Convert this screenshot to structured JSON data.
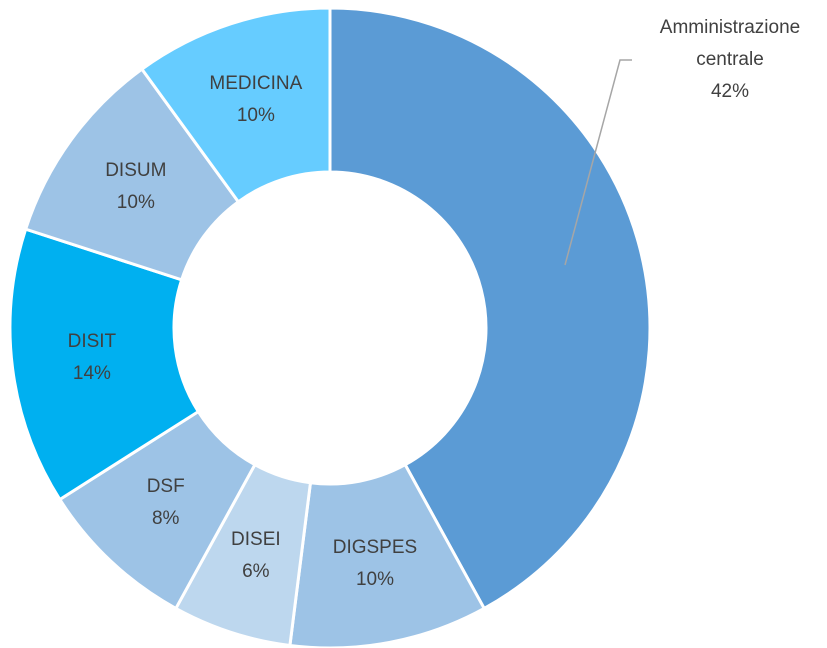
{
  "chart_data": {
    "type": "donut",
    "categories": [
      "Amministrazione centrale",
      "DIGSPES",
      "DISEI",
      "DSF",
      "DISIT",
      "DISUM",
      "MEDICINA"
    ],
    "values": [
      42,
      10,
      6,
      8,
      14,
      10,
      10
    ],
    "value_labels": [
      "42%",
      "10%",
      "6%",
      "8%",
      "14%",
      "10%",
      "10%"
    ],
    "colors": [
      "#5b9bd5",
      "#9dc3e6",
      "#bdd7ee",
      "#9dc3e6",
      "#00b0f0",
      "#9dc3e6",
      "#66ccff"
    ]
  }
}
